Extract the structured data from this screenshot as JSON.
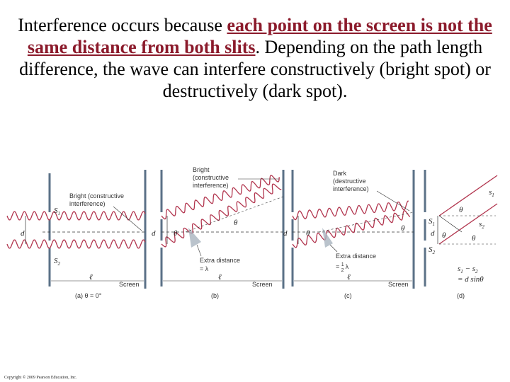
{
  "caption": {
    "part1": "Interference occurs because ",
    "emphasis": "each point on the screen is not the same distance from both slits",
    "part2": ". Depending on the path length difference, the wave can interfere constructively (bright spot) or destructively (dark spot)."
  },
  "panels": {
    "a": {
      "label": "(a) θ = 0°",
      "annotation_line1": "Bright (constructive",
      "annotation_line2": "interference)",
      "slit1": "S",
      "slit1_sub": "1",
      "slit2": "S",
      "slit2_sub": "2",
      "d": "d",
      "screen": "Screen",
      "ell": "ℓ"
    },
    "b": {
      "label": "(b)",
      "annotation_line1": "Bright",
      "annotation_line2": "(constructive",
      "annotation_line3": "interference)",
      "theta": "θ",
      "extra_line1": "Extra distance",
      "extra_line2": "= λ",
      "d": "d",
      "screen": "Screen",
      "ell": "ℓ"
    },
    "c": {
      "label": "(c)",
      "annotation_line1": "Dark",
      "annotation_line2": "(destructive",
      "annotation_line3": "interference)",
      "theta": "θ",
      "extra_line1": "Extra distance",
      "extra_line2": "= ",
      "extra_frac_num": "1",
      "extra_frac_den": "2",
      "extra_line2_tail": "λ",
      "d": "d",
      "screen": "Screen",
      "ell": "ℓ"
    },
    "d": {
      "label": "(d)",
      "s1": "s",
      "s1_sub": "1",
      "s2": "s",
      "s2_sub": "2",
      "slit1": "S",
      "slit1_sub": "1",
      "slit2": "S",
      "slit2_sub": "2",
      "theta": "θ",
      "d": "d",
      "eq_line1": "s",
      "eq_line1_sub1": "1",
      "eq_line1_mid": " − s",
      "eq_line1_sub2": "2",
      "eq_line2": "= d sinθ"
    }
  },
  "copyright": "Copyright © 2009 Pearson Education, Inc.",
  "colors": {
    "wave": "#b2364f",
    "barrier": "#5b7187",
    "emphasis": "#8b1a2b"
  }
}
